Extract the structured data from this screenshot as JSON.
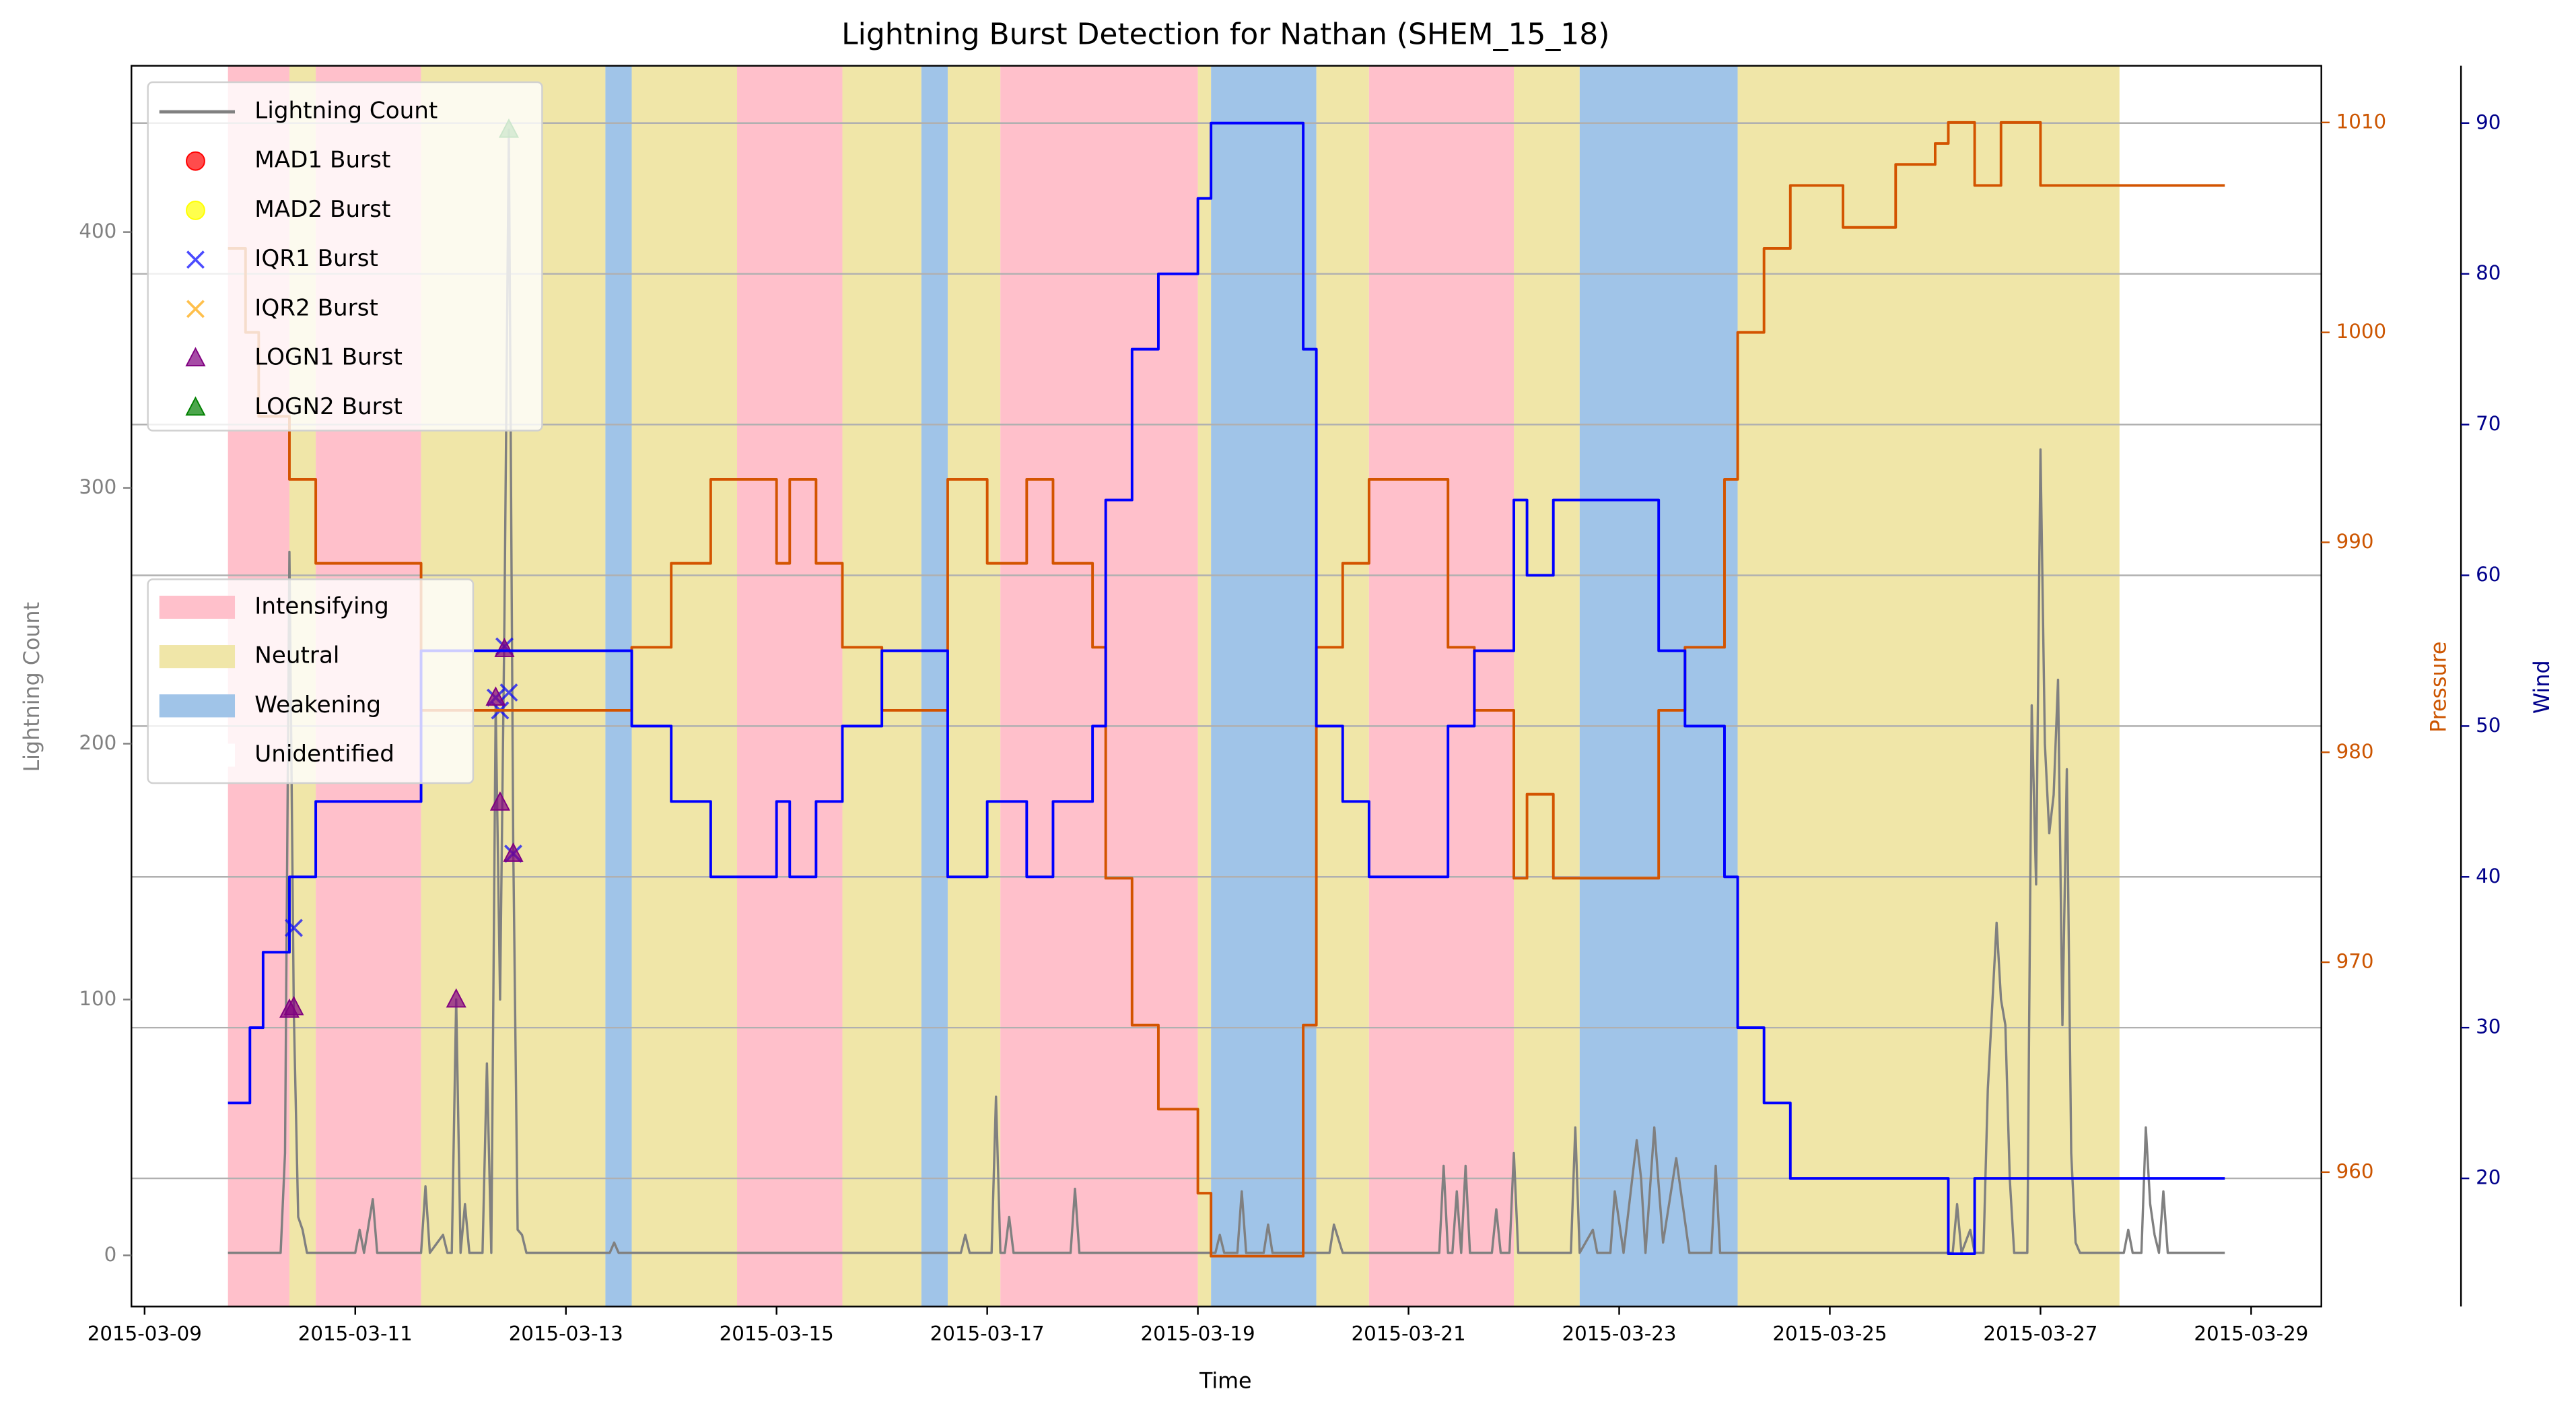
{
  "chart_data": {
    "type": "line",
    "title": "Lightning Burst Detection for Nathan (SHEM_15_18)",
    "x_label": "Time",
    "y_label": "Lightning Count",
    "y2_label": "Pressure",
    "y3_label": "Wind",
    "xlim": [
      "2015-03-08T21:00",
      "2015-03-29T16:00"
    ],
    "xticks": [
      "2015-03-09",
      "2015-03-11",
      "2015-03-13",
      "2015-03-15",
      "2015-03-17",
      "2015-03-19",
      "2015-03-21",
      "2015-03-23",
      "2015-03-25",
      "2015-03-27",
      "2015-03-29"
    ],
    "ylim": [
      -20,
      465
    ],
    "yticks": [
      0,
      100,
      200,
      300,
      400
    ],
    "y2lim": [
      953.6,
      1012.7
    ],
    "y2ticks": [
      960,
      970,
      980,
      990,
      1000,
      1010
    ],
    "y3lim": [
      11.5,
      93.8
    ],
    "y3ticks": [
      20,
      30,
      40,
      50,
      60,
      70,
      80,
      90
    ],
    "grid": "y3",
    "legend": "upper left",
    "phase_legend": "center left",
    "phases": [
      {
        "name": "Intensifying",
        "color": "#ffc0cb"
      },
      {
        "name": "Neutral",
        "color": "#f0e6a8"
      },
      {
        "name": "Weakening",
        "color": "#a0c4e8"
      },
      {
        "name": "Unidentified",
        "color": "#ffffff"
      }
    ],
    "spans": [
      {
        "start": "2015-03-09T19:00",
        "end": "2015-03-10T09:00",
        "phase": "Intensifying"
      },
      {
        "start": "2015-03-10T09:00",
        "end": "2015-03-10T15:00",
        "phase": "Neutral"
      },
      {
        "start": "2015-03-10T15:00",
        "end": "2015-03-11T15:00",
        "phase": "Intensifying"
      },
      {
        "start": "2015-03-11T15:00",
        "end": "2015-03-13T09:00",
        "phase": "Neutral"
      },
      {
        "start": "2015-03-13T09:00",
        "end": "2015-03-13T15:00",
        "phase": "Weakening"
      },
      {
        "start": "2015-03-13T15:00",
        "end": "2015-03-14T15:00",
        "phase": "Neutral"
      },
      {
        "start": "2015-03-14T15:00",
        "end": "2015-03-15T15:00",
        "phase": "Intensifying"
      },
      {
        "start": "2015-03-15T15:00",
        "end": "2015-03-16T09:00",
        "phase": "Neutral"
      },
      {
        "start": "2015-03-16T09:00",
        "end": "2015-03-16T15:00",
        "phase": "Weakening"
      },
      {
        "start": "2015-03-16T15:00",
        "end": "2015-03-17T03:00",
        "phase": "Neutral"
      },
      {
        "start": "2015-03-17T03:00",
        "end": "2015-03-19T00:00",
        "phase": "Intensifying"
      },
      {
        "start": "2015-03-19T00:00",
        "end": "2015-03-19T03:00",
        "phase": "Neutral"
      },
      {
        "start": "2015-03-19T03:00",
        "end": "2015-03-20T03:00",
        "phase": "Weakening"
      },
      {
        "start": "2015-03-20T03:00",
        "end": "2015-03-20T15:00",
        "phase": "Neutral"
      },
      {
        "start": "2015-03-20T15:00",
        "end": "2015-03-22T00:00",
        "phase": "Intensifying"
      },
      {
        "start": "2015-03-22T00:00",
        "end": "2015-03-22T15:00",
        "phase": "Neutral"
      },
      {
        "start": "2015-03-22T15:00",
        "end": "2015-03-24T03:00",
        "phase": "Weakening"
      },
      {
        "start": "2015-03-24T03:00",
        "end": "2015-03-27T18:00",
        "phase": "Neutral"
      }
    ],
    "series": [
      {
        "name": "Lightning Count",
        "type": "line",
        "color": "#808080",
        "x": [
          "2015-03-09T19:00",
          "2015-03-10T07:00",
          "2015-03-10T08:00",
          "2015-03-10T09:00",
          "2015-03-10T10:00",
          "2015-03-10T11:00",
          "2015-03-10T12:00",
          "2015-03-10T13:00",
          "2015-03-11T00:00",
          "2015-03-11T01:00",
          "2015-03-11T02:00",
          "2015-03-11T04:00",
          "2015-03-11T05:00",
          "2015-03-11T15:00",
          "2015-03-11T16:00",
          "2015-03-11T17:00",
          "2015-03-11T20:00",
          "2015-03-11T21:00",
          "2015-03-11T22:00",
          "2015-03-11T23:00",
          "2015-03-12T00:00",
          "2015-03-12T01:00",
          "2015-03-12T02:00",
          "2015-03-12T05:00",
          "2015-03-12T06:00",
          "2015-03-12T07:00",
          "2015-03-12T08:00",
          "2015-03-12T09:00",
          "2015-03-12T10:00",
          "2015-03-12T11:00",
          "2015-03-12T12:00",
          "2015-03-12T13:00",
          "2015-03-12T14:00",
          "2015-03-12T15:00",
          "2015-03-13T10:00",
          "2015-03-13T11:00",
          "2015-03-13T12:00",
          "2015-03-16T18:00",
          "2015-03-16T19:00",
          "2015-03-16T20:00",
          "2015-03-17T01:00",
          "2015-03-17T02:00",
          "2015-03-17T03:00",
          "2015-03-17T04:00",
          "2015-03-17T05:00",
          "2015-03-17T06:00",
          "2015-03-17T19:00",
          "2015-03-17T20:00",
          "2015-03-17T21:00",
          "2015-03-19T04:00",
          "2015-03-19T05:00",
          "2015-03-19T06:00",
          "2015-03-19T09:00",
          "2015-03-19T10:00",
          "2015-03-19T11:00",
          "2015-03-19T15:00",
          "2015-03-19T16:00",
          "2015-03-19T17:00",
          "2015-03-20T06:00",
          "2015-03-20T07:00",
          "2015-03-20T09:00",
          "2015-03-21T07:00",
          "2015-03-21T08:00",
          "2015-03-21T09:00",
          "2015-03-21T10:00",
          "2015-03-21T11:00",
          "2015-03-21T12:00",
          "2015-03-21T13:00",
          "2015-03-21T14:00",
          "2015-03-21T19:00",
          "2015-03-21T20:00",
          "2015-03-21T21:00",
          "2015-03-21T23:00",
          "2015-03-22T00:00",
          "2015-03-22T01:00",
          "2015-03-22T13:00",
          "2015-03-22T14:00",
          "2015-03-22T15:00",
          "2015-03-22T18:00",
          "2015-03-22T19:00",
          "2015-03-22T22:00",
          "2015-03-22T23:00",
          "2015-03-23T01:00",
          "2015-03-23T04:00",
          "2015-03-23T05:00",
          "2015-03-23T06:00",
          "2015-03-23T08:00",
          "2015-03-23T10:00",
          "2015-03-23T13:00",
          "2015-03-23T16:00",
          "2015-03-23T21:00",
          "2015-03-23T22:00",
          "2015-03-23T23:00",
          "2015-03-26T04:00",
          "2015-03-26T05:00",
          "2015-03-26T06:00",
          "2015-03-26T08:00",
          "2015-03-26T09:00",
          "2015-03-26T11:00",
          "2015-03-26T12:00",
          "2015-03-26T14:00",
          "2015-03-26T15:00",
          "2015-03-26T16:00",
          "2015-03-26T17:00",
          "2015-03-26T18:00",
          "2015-03-26T21:00",
          "2015-03-26T22:00",
          "2015-03-26T23:00",
          "2015-03-27T00:00",
          "2015-03-27T01:00",
          "2015-03-27T02:00",
          "2015-03-27T03:00",
          "2015-03-27T04:00",
          "2015-03-27T05:00",
          "2015-03-27T06:00",
          "2015-03-27T07:00",
          "2015-03-27T08:00",
          "2015-03-27T09:00",
          "2015-03-27T19:00",
          "2015-03-27T20:00",
          "2015-03-27T21:00",
          "2015-03-27T23:00",
          "2015-03-28T00:00",
          "2015-03-28T01:00",
          "2015-03-28T02:00",
          "2015-03-28T03:00",
          "2015-03-28T04:00",
          "2015-03-28T05:00",
          "2015-03-28T18:00"
        ],
        "values": [
          1,
          1,
          40,
          275,
          95,
          15,
          10,
          1,
          1,
          10,
          1,
          22,
          1,
          1,
          27,
          1,
          8,
          1,
          1,
          100,
          1,
          20,
          1,
          1,
          75,
          1,
          215,
          100,
          250,
          440,
          160,
          10,
          8,
          1,
          1,
          5,
          1,
          1,
          8,
          1,
          1,
          62,
          1,
          1,
          15,
          1,
          1,
          26,
          1,
          1,
          8,
          1,
          1,
          25,
          1,
          1,
          12,
          1,
          1,
          12,
          1,
          1,
          35,
          1,
          1,
          25,
          1,
          35,
          1,
          1,
          18,
          1,
          1,
          40,
          1,
          1,
          50,
          1,
          10,
          1,
          1,
          25,
          1,
          45,
          30,
          1,
          50,
          5,
          38,
          1,
          1,
          35,
          1,
          1,
          20,
          1,
          10,
          1,
          1,
          65,
          130,
          100,
          90,
          30,
          1,
          1,
          215,
          145,
          315,
          200,
          165,
          180,
          225,
          90,
          190,
          40,
          5,
          1,
          1,
          10,
          1,
          1,
          50,
          20,
          8,
          1,
          25,
          1,
          1
        ]
      },
      {
        "name": "MAD1 Burst",
        "type": "scatter",
        "marker": "circle",
        "color": "#ff0000",
        "x": [],
        "values": []
      },
      {
        "name": "MAD2 Burst",
        "type": "scatter",
        "marker": "circle",
        "color": "#ffff00",
        "x": [],
        "values": []
      },
      {
        "name": "IQR1 Burst",
        "type": "scatter",
        "marker": "x",
        "color": "#0000ff",
        "x": [
          "2015-03-10T10:00",
          "2015-03-12T08:00",
          "2015-03-12T09:00",
          "2015-03-12T10:00",
          "2015-03-12T11:00",
          "2015-03-12T12:00"
        ],
        "values": [
          128,
          218,
          213,
          238,
          220,
          157
        ]
      },
      {
        "name": "IQR2 Burst",
        "type": "scatter",
        "marker": "x",
        "color": "#ffa500",
        "x": [],
        "values": []
      },
      {
        "name": "LOGN1 Burst",
        "type": "scatter",
        "marker": "triangle",
        "color": "#800080",
        "x": [
          "2015-03-10T09:00",
          "2015-03-10T10:00",
          "2015-03-11T23:00",
          "2015-03-12T08:00",
          "2015-03-12T09:00",
          "2015-03-12T10:00",
          "2015-03-12T12:00"
        ],
        "values": [
          96,
          97,
          100,
          218,
          177,
          237,
          157
        ]
      },
      {
        "name": "LOGN2 Burst",
        "type": "scatter",
        "marker": "triangle",
        "color": "#008000",
        "x": [
          "2015-03-12T11:00"
        ],
        "values": [
          440
        ]
      },
      {
        "type": "line",
        "step": "post",
        "axis": "y2",
        "color": "#d35400",
        "x": [
          "2015-03-09T19:00",
          "2015-03-09T23:00",
          "2015-03-10T02:00",
          "2015-03-10T09:00",
          "2015-03-10T15:00",
          "2015-03-11T15:00",
          "2015-03-13T15:00",
          "2015-03-14T00:00",
          "2015-03-14T09:00",
          "2015-03-15T00:00",
          "2015-03-15T03:00",
          "2015-03-15T09:00",
          "2015-03-15T15:00",
          "2015-03-16T00:00",
          "2015-03-16T15:00",
          "2015-03-17T00:00",
          "2015-03-17T09:00",
          "2015-03-17T15:00",
          "2015-03-18T00:00",
          "2015-03-18T03:00",
          "2015-03-18T09:00",
          "2015-03-18T15:00",
          "2015-03-19T00:00",
          "2015-03-19T03:00",
          "2015-03-20T00:00",
          "2015-03-20T03:00",
          "2015-03-20T09:00",
          "2015-03-20T15:00",
          "2015-03-21T09:00",
          "2015-03-21T15:00",
          "2015-03-22T00:00",
          "2015-03-22T03:00",
          "2015-03-22T09:00",
          "2015-03-23T09:00",
          "2015-03-23T15:00",
          "2015-03-24T00:00",
          "2015-03-24T03:00",
          "2015-03-24T09:00",
          "2015-03-24T15:00",
          "2015-03-25T03:00",
          "2015-03-25T15:00",
          "2015-03-26T00:00",
          "2015-03-26T03:00",
          "2015-03-26T09:00",
          "2015-03-26T15:00",
          "2015-03-27T00:00",
          "2015-03-28T18:00"
        ],
        "values": [
          1004,
          1000,
          996,
          993,
          989,
          982,
          985,
          989,
          993,
          989,
          993,
          989,
          985,
          982,
          993,
          989,
          993,
          989,
          985,
          974,
          967,
          963,
          959,
          956,
          967,
          985,
          989,
          993,
          985,
          982,
          974,
          978,
          974,
          982,
          985,
          993,
          1000,
          1004,
          1007,
          1005,
          1008,
          1009,
          1010,
          1007,
          1010,
          1007,
          1007
        ]
      },
      {
        "type": "line",
        "step": "post",
        "axis": "y3",
        "color": "#0000ff",
        "x": [
          "2015-03-09T19:00",
          "2015-03-10T00:00",
          "2015-03-10T03:00",
          "2015-03-10T09:00",
          "2015-03-10T15:00",
          "2015-03-11T15:00",
          "2015-03-13T15:00",
          "2015-03-14T00:00",
          "2015-03-14T09:00",
          "2015-03-15T00:00",
          "2015-03-15T03:00",
          "2015-03-15T09:00",
          "2015-03-15T15:00",
          "2015-03-16T00:00",
          "2015-03-16T15:00",
          "2015-03-17T00:00",
          "2015-03-17T09:00",
          "2015-03-17T15:00",
          "2015-03-18T00:00",
          "2015-03-18T03:00",
          "2015-03-18T09:00",
          "2015-03-18T15:00",
          "2015-03-19T00:00",
          "2015-03-19T03:00",
          "2015-03-20T00:00",
          "2015-03-20T03:00",
          "2015-03-20T09:00",
          "2015-03-20T15:00",
          "2015-03-21T09:00",
          "2015-03-21T15:00",
          "2015-03-22T00:00",
          "2015-03-22T03:00",
          "2015-03-22T09:00",
          "2015-03-23T09:00",
          "2015-03-23T15:00",
          "2015-03-24T00:00",
          "2015-03-24T03:00",
          "2015-03-24T09:00",
          "2015-03-24T15:00",
          "2015-03-26T03:00",
          "2015-03-26T09:00",
          "2015-03-28T18:00"
        ],
        "values": [
          25,
          30,
          35,
          40,
          45,
          55,
          50,
          45,
          40,
          45,
          40,
          45,
          50,
          55,
          40,
          45,
          40,
          45,
          50,
          65,
          75,
          80,
          85,
          90,
          75,
          50,
          45,
          40,
          50,
          55,
          65,
          60,
          65,
          55,
          50,
          40,
          30,
          25,
          20,
          15,
          20,
          20
        ]
      }
    ]
  }
}
